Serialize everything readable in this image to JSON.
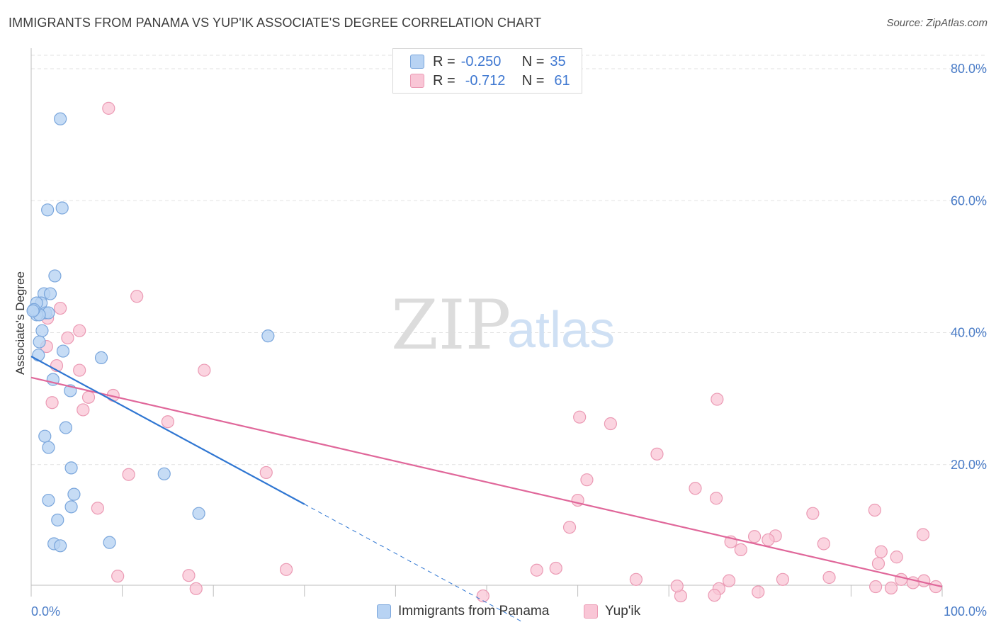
{
  "title": "IMMIGRANTS FROM PANAMA VS YUP'IK ASSOCIATE'S DEGREE CORRELATION CHART",
  "source": "Source: ZipAtlas.com",
  "watermark": {
    "zip": "ZIP",
    "atlas": "atlas"
  },
  "legend": {
    "rows": [
      {
        "r_label": "R =",
        "r_value": "-0.250",
        "n_label": "N =",
        "n_value": "35"
      },
      {
        "r_label": "R =",
        "r_value": "-0.712",
        "n_label": "N =",
        "n_value": "61"
      }
    ]
  },
  "colors": {
    "panama_fill": "#b8d3f3",
    "panama_stroke": "#7aa6dc",
    "panama_line": "#2f76d2",
    "yupik_fill": "#f9c6d6",
    "yupik_stroke": "#eb9ab4",
    "yupik_line": "#e0679a",
    "tick_text": "#4a7cc7",
    "grid": "#e2e2e2"
  },
  "chart_data": {
    "type": "scatter",
    "title": "IMMIGRANTS FROM PANAMA VS YUP'IK ASSOCIATE'S DEGREE CORRELATION CHART",
    "xlabel": "",
    "ylabel": "Associate's Degree",
    "xlim": [
      0,
      100
    ],
    "ylim": [
      0,
      80
    ],
    "x_tick_labels": [
      "0.0%",
      "100.0%"
    ],
    "y_tick_labels": [
      "20.0%",
      "40.0%",
      "60.0%",
      "80.0%"
    ],
    "y_ticks": [
      20,
      40,
      60,
      80
    ],
    "grid": true,
    "legend_placement": "bottom",
    "series": [
      {
        "name": "Immigrants from Panama",
        "points": [
          [
            3.2,
            72.4
          ],
          [
            1.8,
            58.6
          ],
          [
            3.4,
            58.9
          ],
          [
            2.6,
            48.6
          ],
          [
            1.4,
            45.9
          ],
          [
            2.1,
            45.9
          ],
          [
            1.1,
            44.5
          ],
          [
            0.6,
            44.5
          ],
          [
            1.6,
            43.0
          ],
          [
            1.9,
            43.0
          ],
          [
            0.6,
            42.7
          ],
          [
            0.9,
            42.7
          ],
          [
            0.3,
            43.5
          ],
          [
            1.2,
            40.3
          ],
          [
            0.9,
            38.6
          ],
          [
            3.5,
            37.2
          ],
          [
            0.8,
            36.6
          ],
          [
            7.7,
            36.2
          ],
          [
            26.0,
            39.5
          ],
          [
            2.4,
            32.9
          ],
          [
            4.3,
            31.2
          ],
          [
            3.8,
            25.6
          ],
          [
            1.5,
            24.3
          ],
          [
            1.9,
            22.6
          ],
          [
            4.4,
            19.5
          ],
          [
            14.6,
            18.6
          ],
          [
            1.9,
            14.6
          ],
          [
            4.7,
            15.5
          ],
          [
            4.4,
            13.6
          ],
          [
            18.4,
            12.6
          ],
          [
            2.9,
            11.6
          ],
          [
            2.5,
            8.0
          ],
          [
            3.2,
            7.7
          ],
          [
            8.6,
            8.2
          ],
          [
            0.2,
            43.3
          ]
        ]
      },
      {
        "name": "Yup'ik",
        "points": [
          [
            8.5,
            74.0
          ],
          [
            11.6,
            45.5
          ],
          [
            3.2,
            43.7
          ],
          [
            1.8,
            42.2
          ],
          [
            5.3,
            40.3
          ],
          [
            4.0,
            39.2
          ],
          [
            1.7,
            37.9
          ],
          [
            2.8,
            35.0
          ],
          [
            5.3,
            34.3
          ],
          [
            19.0,
            34.3
          ],
          [
            9.0,
            30.5
          ],
          [
            6.3,
            30.2
          ],
          [
            2.3,
            29.4
          ],
          [
            5.7,
            28.3
          ],
          [
            15.0,
            26.5
          ],
          [
            75.3,
            29.9
          ],
          [
            60.2,
            27.2
          ],
          [
            63.6,
            26.2
          ],
          [
            68.7,
            21.6
          ],
          [
            10.7,
            18.5
          ],
          [
            25.8,
            18.8
          ],
          [
            61.0,
            17.7
          ],
          [
            72.9,
            16.4
          ],
          [
            60.0,
            14.6
          ],
          [
            7.3,
            13.4
          ],
          [
            75.2,
            14.9
          ],
          [
            85.8,
            12.6
          ],
          [
            92.6,
            13.1
          ],
          [
            59.1,
            10.5
          ],
          [
            76.8,
            8.3
          ],
          [
            87.0,
            8.0
          ],
          [
            97.9,
            9.4
          ],
          [
            79.4,
            9.1
          ],
          [
            81.7,
            9.2
          ],
          [
            80.9,
            8.6
          ],
          [
            77.9,
            7.1
          ],
          [
            93.3,
            6.8
          ],
          [
            95.0,
            6.0
          ],
          [
            93.0,
            5.0
          ],
          [
            9.5,
            3.1
          ],
          [
            17.3,
            3.2
          ],
          [
            28.0,
            4.1
          ],
          [
            55.5,
            4.0
          ],
          [
            57.6,
            4.3
          ],
          [
            66.4,
            2.6
          ],
          [
            76.6,
            2.4
          ],
          [
            82.5,
            2.6
          ],
          [
            87.6,
            2.9
          ],
          [
            95.5,
            2.6
          ],
          [
            98.0,
            2.4
          ],
          [
            99.3,
            1.5
          ],
          [
            92.7,
            1.5
          ],
          [
            94.4,
            1.3
          ],
          [
            96.8,
            2.1
          ],
          [
            18.1,
            1.2
          ],
          [
            75.5,
            1.2
          ],
          [
            79.8,
            0.7
          ],
          [
            71.3,
            0.1
          ],
          [
            75.0,
            0.2
          ],
          [
            49.6,
            0.1
          ],
          [
            70.9,
            1.6
          ]
        ]
      }
    ],
    "trendlines": [
      {
        "series": "Immigrants from Panama",
        "solid": [
          [
            0,
            36.4
          ],
          [
            30,
            14.0
          ]
        ],
        "dashed": [
          [
            30,
            14.0
          ],
          [
            54,
            -3.9
          ]
        ]
      },
      {
        "series": "Yup'ik",
        "solid": [
          [
            0,
            33.2
          ],
          [
            100,
            1.5
          ]
        ]
      }
    ]
  },
  "bottom_legend": [
    "Immigrants from Panama",
    "Yup'ik"
  ]
}
